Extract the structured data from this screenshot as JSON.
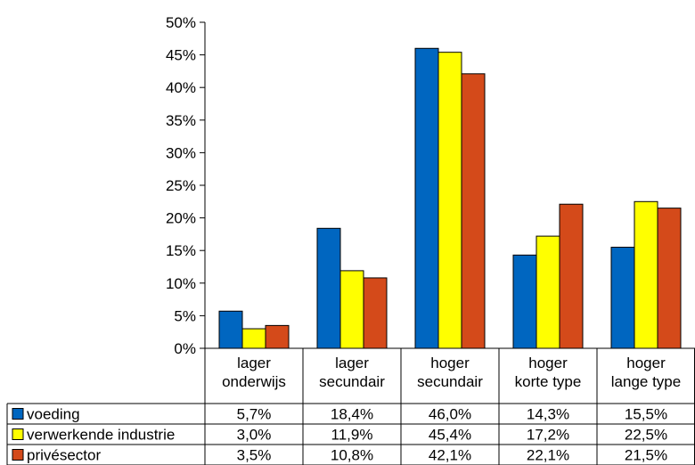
{
  "chart_data": {
    "type": "bar",
    "categories": [
      [
        "lager",
        "onderwijs"
      ],
      [
        "lager",
        "secundair"
      ],
      [
        "hoger",
        "secundair"
      ],
      [
        "hoger",
        "korte type"
      ],
      [
        "hoger",
        "lange type"
      ]
    ],
    "series": [
      {
        "name": "voeding",
        "color": "#0066c0",
        "values": [
          5.7,
          18.4,
          46.0,
          14.3,
          15.5
        ],
        "labels": [
          "5,7%",
          "18,4%",
          "46,0%",
          "14,3%",
          "15,5%"
        ]
      },
      {
        "name": "verwerkende industrie",
        "color": "#ffff00",
        "values": [
          3.0,
          11.9,
          45.4,
          17.2,
          22.5
        ],
        "labels": [
          "3,0%",
          "11,9%",
          "45,4%",
          "17,2%",
          "22,5%"
        ]
      },
      {
        "name": "privésector",
        "color": "#d44a1a",
        "values": [
          3.5,
          10.8,
          42.1,
          22.1,
          21.5
        ],
        "labels": [
          "3,5%",
          "10,8%",
          "42,1%",
          "22,1%",
          "21,5%"
        ]
      }
    ],
    "y_ticks": [
      "0%",
      "5%",
      "10%",
      "15%",
      "20%",
      "25%",
      "30%",
      "35%",
      "40%",
      "45%",
      "50%"
    ],
    "ylim": [
      0,
      50
    ],
    "ylabel": "",
    "xlabel": "",
    "title": "",
    "grid": false,
    "legend": "data-table"
  }
}
